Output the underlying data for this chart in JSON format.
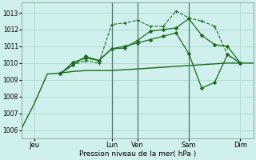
{
  "background_color": "#cff0ec",
  "grid_color": "#b0ddd8",
  "line_color": "#1a6b1a",
  "xlabel_text": "Pression niveau de la mer( hPa )",
  "xlim": [
    0,
    108
  ],
  "ylim": [
    1005.5,
    1013.6
  ],
  "yticks": [
    1006,
    1007,
    1008,
    1009,
    1010,
    1011,
    1012,
    1013
  ],
  "xtick_positions": [
    6,
    42,
    54,
    78,
    102
  ],
  "xtick_labels": [
    "Jeu",
    "Lun",
    "Ven",
    "Sam",
    "Dim"
  ],
  "vlines": [
    42,
    54,
    78
  ],
  "series": [
    {
      "x": [
        0,
        6,
        12,
        18,
        24,
        30,
        36,
        42,
        48,
        54,
        60,
        66,
        72,
        78,
        84,
        90,
        96,
        102,
        108
      ],
      "y": [
        1006.1,
        1007.6,
        1009.35,
        1009.4,
        1009.5,
        1009.55,
        1009.55,
        1009.55,
        1009.6,
        1009.65,
        1009.7,
        1009.75,
        1009.8,
        1009.85,
        1009.9,
        1009.95,
        1010.0,
        1010.0,
        1010.0
      ],
      "linestyle": "-",
      "marker": "",
      "markersize": 0,
      "lw": 1.0,
      "zorder": 2
    },
    {
      "x": [
        18,
        24,
        30,
        36,
        42,
        48,
        54,
        60,
        66,
        72,
        78,
        84,
        90,
        96,
        102
      ],
      "y": [
        1009.4,
        1009.9,
        1010.15,
        1010.0,
        1012.3,
        1012.4,
        1012.55,
        1012.2,
        1012.2,
        1013.1,
        1012.7,
        1012.5,
        1012.2,
        1010.5,
        1010.0
      ],
      "linestyle": "--",
      "marker": "+",
      "markersize": 3.5,
      "lw": 0.8,
      "zorder": 4
    },
    {
      "x": [
        18,
        24,
        30,
        36,
        42,
        48,
        54,
        60,
        66,
        72,
        78,
        84,
        90,
        96,
        102
      ],
      "y": [
        1009.35,
        1009.9,
        1010.4,
        1010.15,
        1010.85,
        1010.9,
        1011.35,
        1011.9,
        1012.0,
        1012.1,
        1012.65,
        1011.65,
        1011.1,
        1011.0,
        1010.0
      ],
      "linestyle": "-",
      "marker": "D",
      "markersize": 2.0,
      "lw": 0.9,
      "zorder": 4
    },
    {
      "x": [
        18,
        24,
        30,
        36,
        42,
        48,
        54,
        60,
        66,
        72,
        78,
        84,
        90,
        96,
        102
      ],
      "y": [
        1009.35,
        1010.05,
        1010.3,
        1010.15,
        1010.85,
        1011.0,
        1011.2,
        1011.4,
        1011.6,
        1011.8,
        1010.55,
        1008.5,
        1008.85,
        1010.5,
        1010.0
      ],
      "linestyle": "-",
      "marker": "D",
      "markersize": 2.0,
      "lw": 0.9,
      "zorder": 3
    }
  ]
}
